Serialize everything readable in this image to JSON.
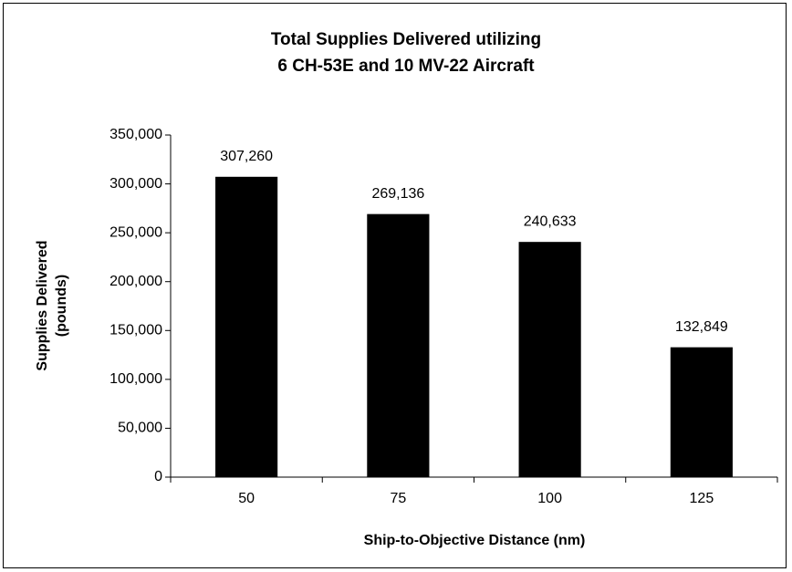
{
  "chart_data": {
    "type": "bar",
    "title": [
      "Total Supplies Delivered utilizing",
      "6 CH-53E and 10 MV-22 Aircraft"
    ],
    "x_label": "Ship-to-Objective Distance (nm)",
    "y_label": [
      "Supplies Delivered",
      "(pounds)"
    ],
    "categories": [
      "50",
      "75",
      "100",
      "125"
    ],
    "values": [
      307260,
      269136,
      240633,
      132849
    ],
    "value_labels": [
      "307,260",
      "269,136",
      "240,633",
      "132,849"
    ],
    "color": "#000000",
    "ylim": [
      0,
      350000
    ],
    "yticks": [
      0,
      {
        "value": 50000,
        "label": "50,000"
      },
      {
        "value": 100000,
        "label": "100,000"
      },
      {
        "value": 150000,
        "label": "150,000"
      },
      {
        "value": 200000,
        "label": "200,000"
      },
      {
        "value": 250000,
        "label": "250,000"
      },
      {
        "value": 300000,
        "label": "300,000"
      },
      {
        "value": 350000,
        "label": "350,000"
      }
    ],
    "grid": false
  }
}
